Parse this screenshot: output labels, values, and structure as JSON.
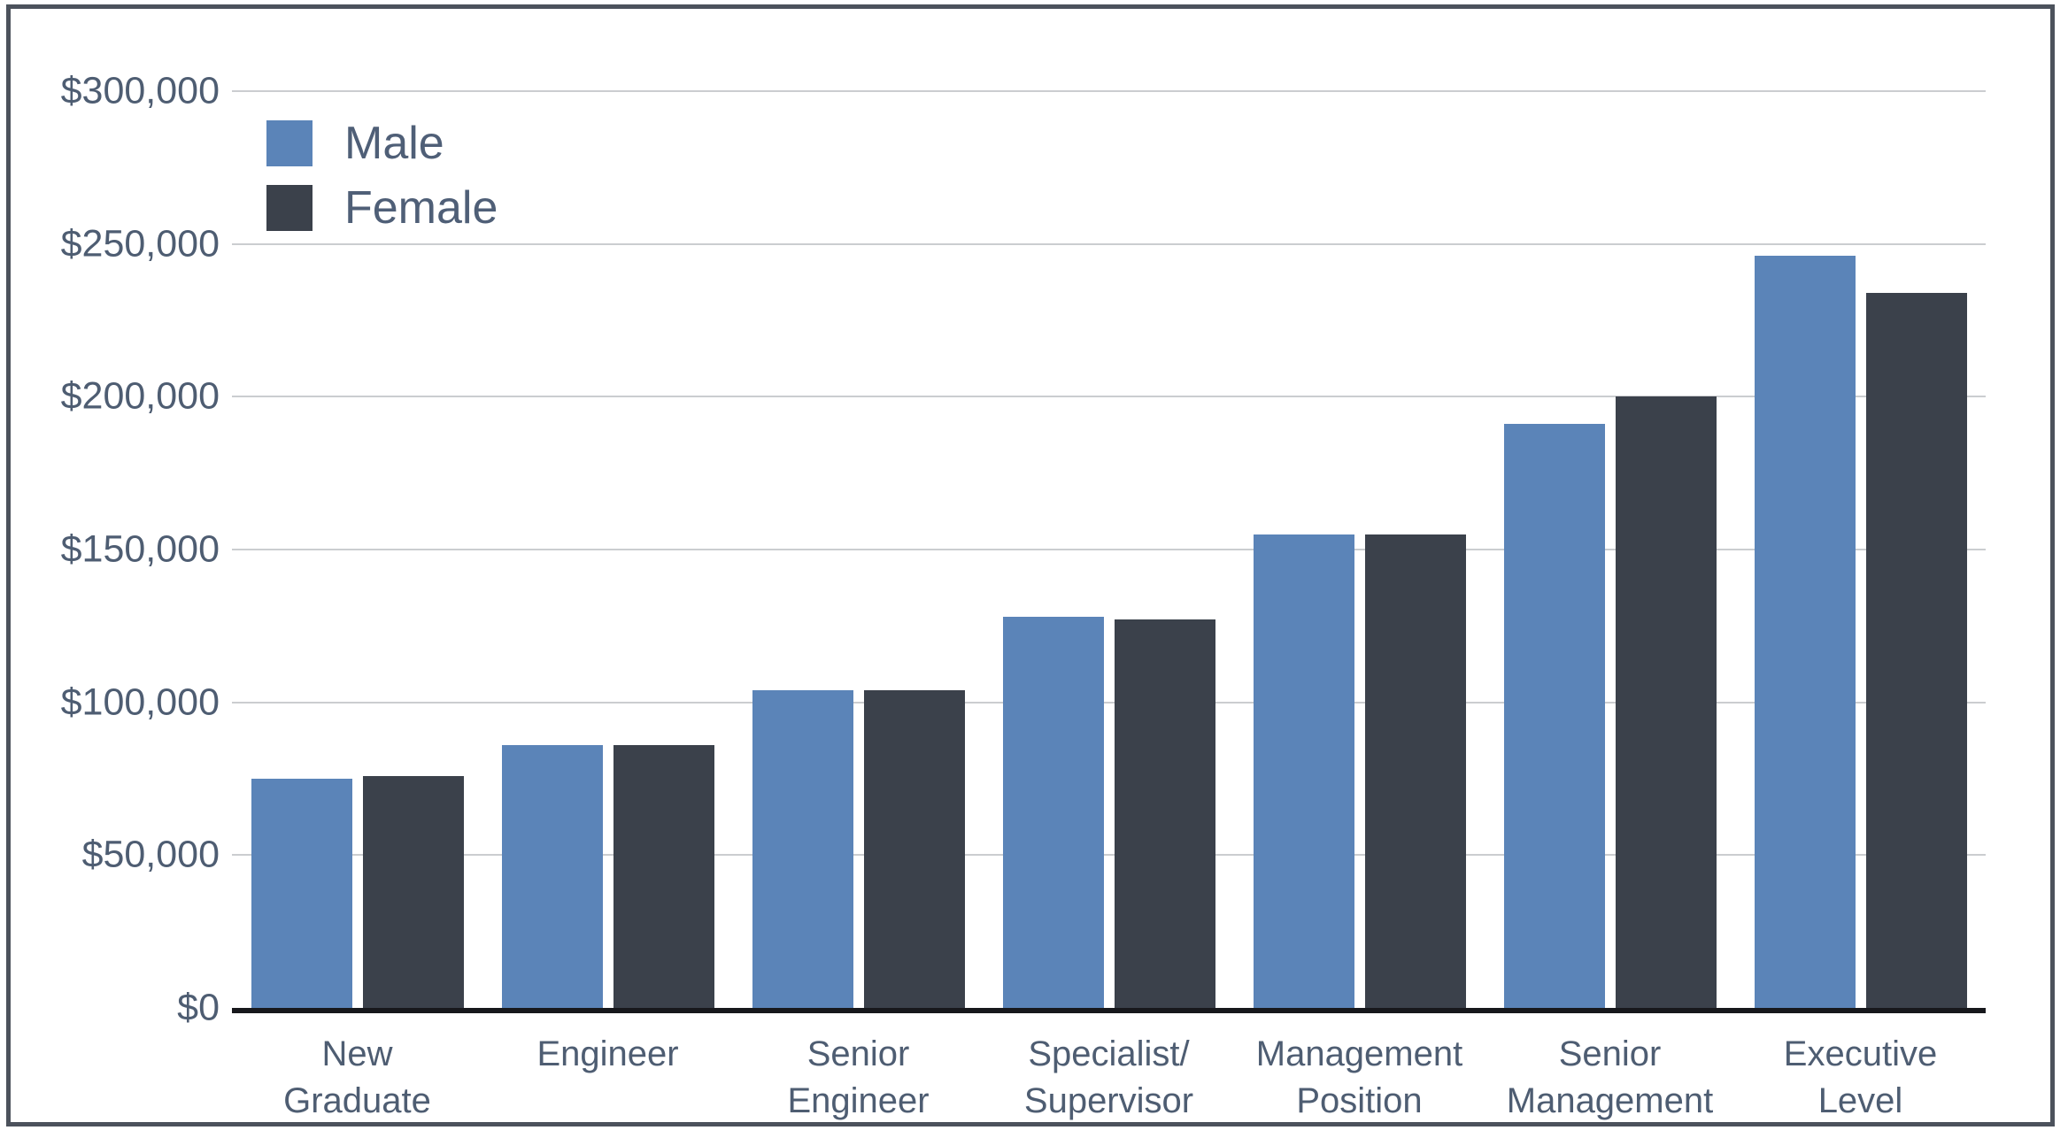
{
  "chart_data": {
    "type": "bar",
    "categories": [
      "New\nGraduate",
      "Engineer",
      "Senior\nEngineer",
      "Specialist/\nSupervisor",
      "Management\nPosition",
      "Senior\nManagement",
      "Executive\nLevel"
    ],
    "series": [
      {
        "name": "Male",
        "color": "#5b84b8",
        "values": [
          75000,
          86000,
          104000,
          128000,
          155000,
          191000,
          246000
        ]
      },
      {
        "name": "Female",
        "color": "#3b414b",
        "values": [
          76000,
          86000,
          104000,
          127000,
          155000,
          200000,
          234000
        ]
      }
    ],
    "title": "",
    "xlabel": "",
    "ylabel": "",
    "ylim": [
      0,
      300000
    ],
    "ytick_step": 50000,
    "ytick_labels": [
      "$0",
      "$50,000",
      "$100,000",
      "$150,000",
      "$200,000",
      "$250,000",
      "$300,000"
    ],
    "grid": true,
    "legend_position": "top-left"
  },
  "legend": {
    "male_label": "Male",
    "female_label": "Female"
  },
  "colors": {
    "male_bar": "#5b84b8",
    "female_bar": "#3b414b",
    "gridline": "#cbcdd0",
    "axis_line": "#17181c",
    "tick_text": "#4e5d72",
    "legend_text": "#4f5f77",
    "frame_border": "#4c525c",
    "background": "#ffffff"
  }
}
